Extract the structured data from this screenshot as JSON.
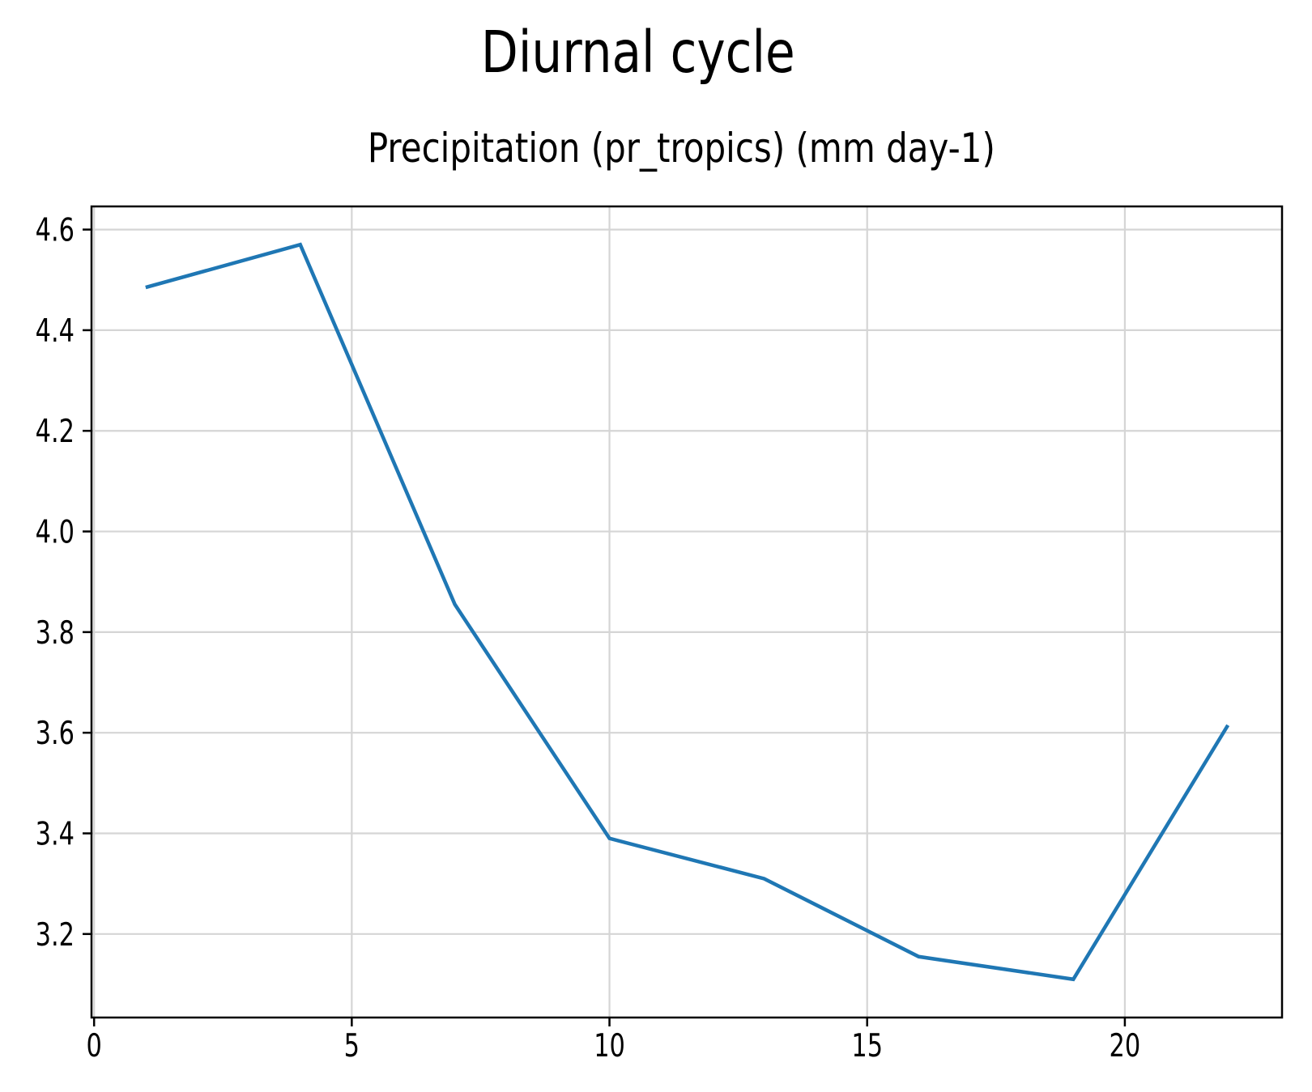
{
  "chart_data": {
    "type": "line",
    "title": "Diurnal cycle",
    "subtitle": "Precipitation (pr_tropics) (mm day-1)",
    "x": [
      1,
      4,
      7,
      10,
      13,
      16,
      19,
      22
    ],
    "y": [
      4.485,
      4.57,
      3.855,
      3.39,
      3.31,
      3.155,
      3.11,
      3.615
    ],
    "xlim": [
      -0.05,
      23.05
    ],
    "ylim": [
      3.034,
      4.646
    ],
    "x_ticks": [
      0,
      5,
      10,
      15,
      20
    ],
    "x_tick_labels": [
      "0",
      "5",
      "10",
      "15",
      "20"
    ],
    "y_ticks": [
      3.2,
      3.4,
      3.6,
      3.8,
      4.0,
      4.2,
      4.4,
      4.6
    ],
    "y_tick_labels": [
      "3.2",
      "3.4",
      "3.6",
      "3.8",
      "4.0",
      "4.2",
      "4.4",
      "4.6"
    ],
    "xlabel": "",
    "ylabel": "",
    "grid": true,
    "legend": "none",
    "line_color": "#1f77b4",
    "grid_color": "#d5d5d5",
    "axis_color": "#000000"
  }
}
